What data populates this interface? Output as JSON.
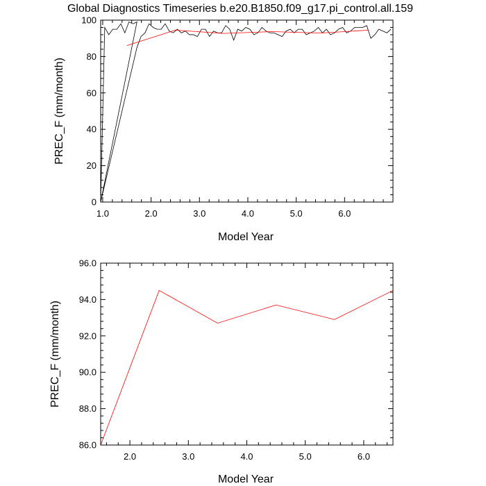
{
  "title": "Global Diagnostics Timeseries b.e20.B1850.f09_g17.pi_control.all.159",
  "colors": {
    "monthly": "#000000",
    "annual": "#ff0000",
    "frame": "#000000"
  },
  "chart_data": [
    {
      "type": "line",
      "xlabel": "Model Year",
      "ylabel": "PREC_F (mm/month)",
      "xlim": [
        0.958,
        7.0
      ],
      "ylim": [
        0,
        100
      ],
      "xticks": [
        1.0,
        2.0,
        3.0,
        4.0,
        5.0,
        6.0
      ],
      "xtick_labels": [
        "1.0",
        "2.0",
        "3.0",
        "4.0",
        "5.0",
        "6.0"
      ],
      "yticks": [
        0,
        20,
        40,
        60,
        80,
        100
      ],
      "ytick_labels": [
        "0",
        "20",
        "40",
        "60",
        "80",
        "100"
      ],
      "series": [
        {
          "color": "#000000",
          "x": [
            0.958,
            1.042,
            1.125,
            1.208,
            1.292,
            1.375,
            1.458,
            1.542,
            1.625,
            1.708,
            0.958,
            1.708,
            1.792,
            1.875,
            1.958,
            2.042,
            2.125,
            2.208,
            2.292,
            2.375,
            2.458,
            2.542,
            2.625,
            2.708,
            2.792,
            2.875,
            2.958,
            3.042,
            3.125,
            3.208,
            3.292,
            3.375,
            3.458,
            3.542,
            3.625,
            3.708,
            3.792,
            3.875,
            3.958,
            4.042,
            4.125,
            4.208,
            4.292,
            4.375,
            4.458,
            4.542,
            4.625,
            4.708,
            4.792,
            4.875,
            4.958,
            5.042,
            5.125,
            5.208,
            5.292,
            5.375,
            5.458,
            5.542,
            5.625,
            5.708,
            5.792,
            5.875,
            5.958,
            6.042,
            6.125,
            6.208,
            6.292,
            6.375,
            6.458,
            6.542,
            6.625,
            6.708,
            6.792,
            6.875,
            6.958
          ],
          "y": [
            0,
            96,
            92,
            95,
            95,
            98,
            93,
            99,
            98,
            99,
            0,
            85,
            91,
            93,
            98,
            96,
            95,
            95,
            98,
            94,
            93,
            95,
            93,
            94,
            92,
            92,
            91,
            95,
            95,
            91,
            94,
            93,
            93,
            97,
            95,
            89,
            95,
            94,
            96,
            95,
            92,
            93,
            96,
            94,
            93,
            93,
            92,
            91,
            94,
            95,
            93,
            95,
            95,
            92,
            93,
            94,
            96,
            93,
            95,
            92,
            93,
            95,
            96,
            93,
            94,
            96,
            96,
            96,
            97,
            90,
            92,
            95,
            94,
            93,
            95
          ]
        },
        {
          "color": "#ff0000",
          "x": [
            1.5,
            2.5,
            3.5,
            4.5,
            5.5,
            6.5
          ],
          "y": [
            86.0,
            94.5,
            92.7,
            93.7,
            92.9,
            94.5
          ]
        }
      ]
    },
    {
      "type": "line",
      "xlabel": "Model Year",
      "ylabel": "PREC_F (mm/month)",
      "xlim": [
        1.5,
        6.5
      ],
      "ylim": [
        86.0,
        96.0
      ],
      "xticks": [
        2.0,
        3.0,
        4.0,
        5.0,
        6.0
      ],
      "xtick_labels": [
        "2.0",
        "3.0",
        "4.0",
        "5.0",
        "6.0"
      ],
      "yticks": [
        86.0,
        88.0,
        90.0,
        92.0,
        94.0,
        96.0
      ],
      "ytick_labels": [
        "86.0",
        "88.0",
        "90.0",
        "92.0",
        "94.0",
        "96.0"
      ],
      "series": [
        {
          "color": "#ff0000",
          "x": [
            1.5,
            2.5,
            3.5,
            4.5,
            5.5,
            6.5
          ],
          "y": [
            86.0,
            94.5,
            92.7,
            93.7,
            92.9,
            94.5
          ]
        }
      ]
    }
  ]
}
